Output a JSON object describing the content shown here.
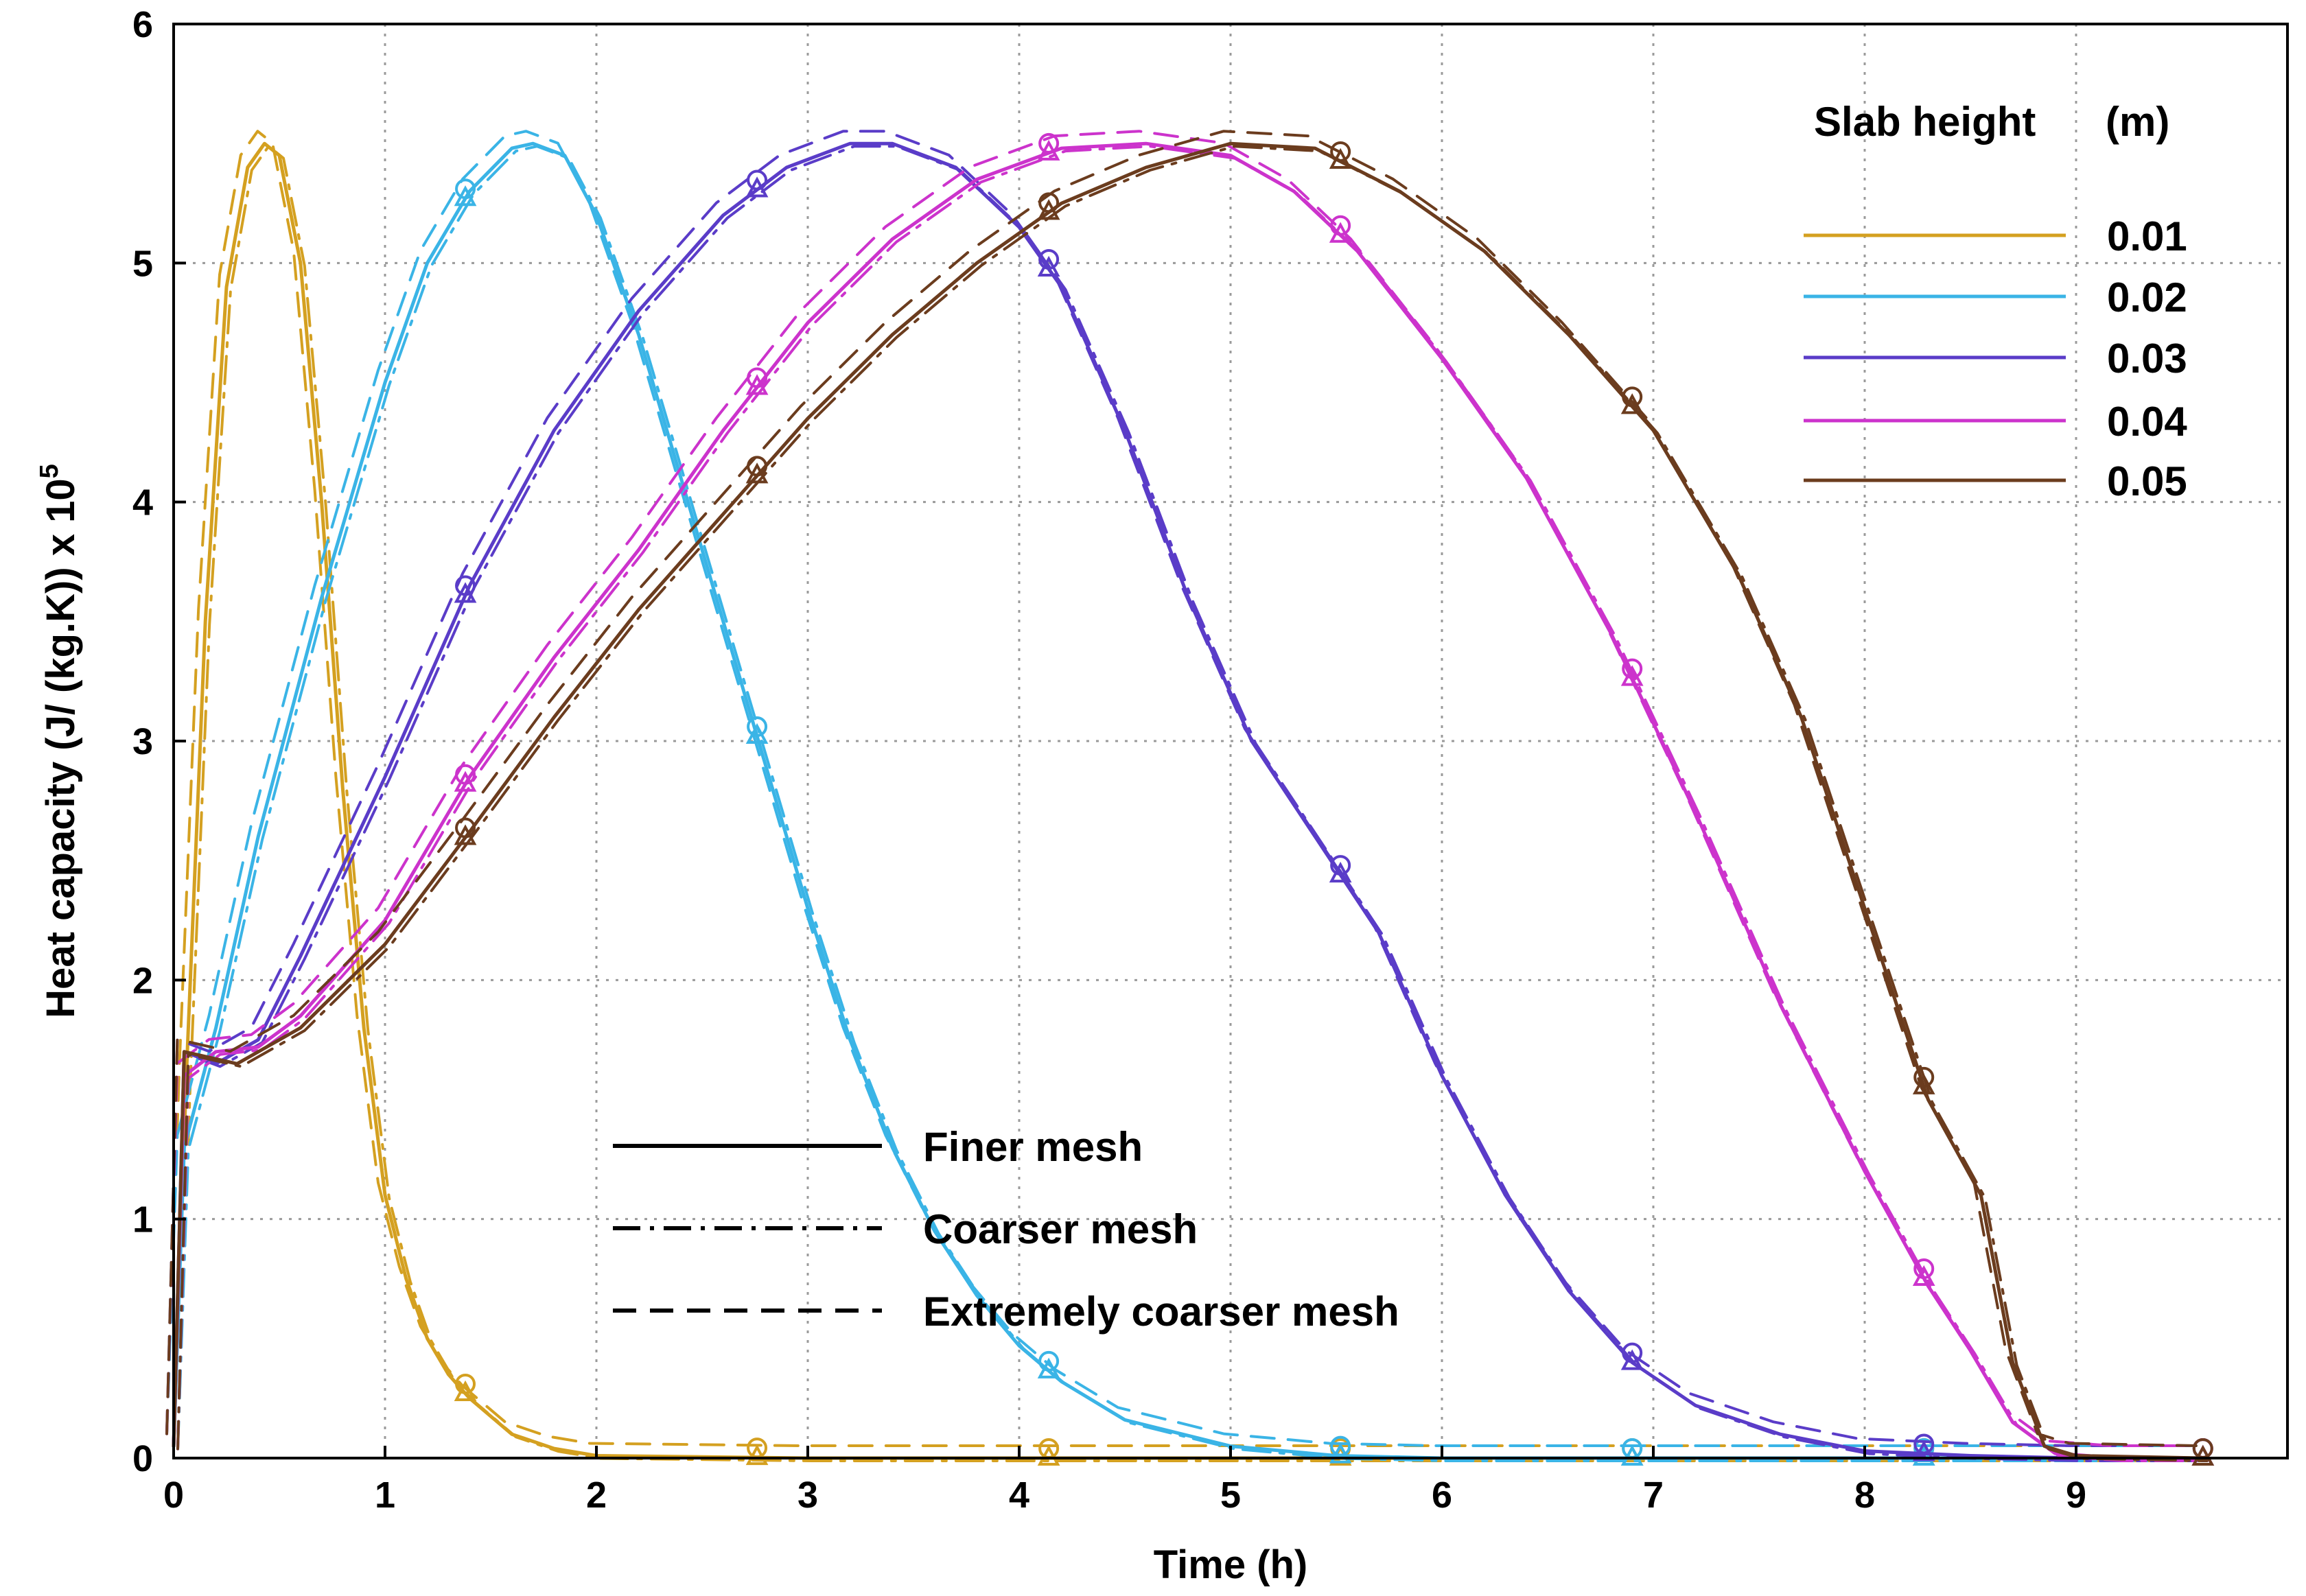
{
  "chart_data": {
    "type": "line",
    "title": "",
    "xlabel": "Time (h)",
    "ylabel": "Heat capacity (J/ (kg.K)) x 10",
    "ylabel_exponent": "5",
    "xlim": [
      0,
      10
    ],
    "ylim": [
      0,
      6
    ],
    "xticks": [
      "0",
      "1",
      "2",
      "3",
      "4",
      "5",
      "6",
      "7",
      "8",
      "9"
    ],
    "yticks": [
      "0",
      "1",
      "2",
      "3",
      "4",
      "5",
      "6"
    ],
    "grid": true,
    "legend_title": "Slab height",
    "legend_unit": "(m)",
    "legend_position": "top-right",
    "series": [
      {
        "name": "0.01",
        "color": "#d4a020",
        "points": [
          [
            0,
            0.05
          ],
          [
            0.06,
            1.6
          ],
          [
            0.15,
            3.5
          ],
          [
            0.25,
            4.9
          ],
          [
            0.35,
            5.4
          ],
          [
            0.43,
            5.5
          ],
          [
            0.5,
            5.45
          ],
          [
            0.6,
            5.0
          ],
          [
            0.7,
            4.0
          ],
          [
            0.8,
            2.8
          ],
          [
            0.9,
            1.8
          ],
          [
            1.0,
            1.1
          ],
          [
            1.1,
            0.75
          ],
          [
            1.2,
            0.5
          ],
          [
            1.3,
            0.35
          ],
          [
            1.4,
            0.25
          ],
          [
            1.6,
            0.1
          ],
          [
            1.8,
            0.04
          ],
          [
            2.0,
            0.01
          ],
          [
            3,
            0
          ],
          [
            4,
            0
          ],
          [
            5,
            0
          ],
          [
            6,
            0
          ],
          [
            7,
            0
          ],
          [
            8,
            0
          ],
          [
            9,
            0
          ],
          [
            9.6,
            0
          ]
        ],
        "markers_x": [
          1.38,
          2.76,
          4.14,
          5.52,
          6.9,
          8.28,
          9.6
        ]
      },
      {
        "name": "0.02",
        "color": "#3ab4e6",
        "points": [
          [
            0,
            0.05
          ],
          [
            0.05,
            1.3
          ],
          [
            0.2,
            1.8
          ],
          [
            0.4,
            2.6
          ],
          [
            0.7,
            3.6
          ],
          [
            1.0,
            4.5
          ],
          [
            1.2,
            5.0
          ],
          [
            1.4,
            5.3
          ],
          [
            1.6,
            5.48
          ],
          [
            1.7,
            5.5
          ],
          [
            1.85,
            5.45
          ],
          [
            2.0,
            5.2
          ],
          [
            2.2,
            4.7
          ],
          [
            2.4,
            4.1
          ],
          [
            2.6,
            3.5
          ],
          [
            2.8,
            2.9
          ],
          [
            3.0,
            2.3
          ],
          [
            3.2,
            1.75
          ],
          [
            3.4,
            1.3
          ],
          [
            3.6,
            0.95
          ],
          [
            3.8,
            0.68
          ],
          [
            4.0,
            0.47
          ],
          [
            4.2,
            0.32
          ],
          [
            4.5,
            0.16
          ],
          [
            5.0,
            0.05
          ],
          [
            5.5,
            0.01
          ],
          [
            6,
            0
          ],
          [
            7,
            0
          ],
          [
            8,
            0
          ],
          [
            9,
            0
          ],
          [
            9.6,
            0
          ]
        ],
        "markers_x": [
          1.38,
          2.76,
          4.14,
          5.52,
          6.9,
          8.28,
          9.6
        ]
      },
      {
        "name": "0.03",
        "color": "#5a3cc8",
        "points": [
          [
            0,
            0.05
          ],
          [
            0.05,
            1.7
          ],
          [
            0.2,
            1.65
          ],
          [
            0.4,
            1.75
          ],
          [
            0.6,
            2.1
          ],
          [
            1.0,
            2.85
          ],
          [
            1.4,
            3.65
          ],
          [
            1.8,
            4.3
          ],
          [
            2.2,
            4.8
          ],
          [
            2.6,
            5.2
          ],
          [
            2.9,
            5.4
          ],
          [
            3.2,
            5.5
          ],
          [
            3.4,
            5.5
          ],
          [
            3.7,
            5.4
          ],
          [
            4.0,
            5.15
          ],
          [
            4.2,
            4.9
          ],
          [
            4.5,
            4.3
          ],
          [
            4.8,
            3.6
          ],
          [
            5.1,
            3.0
          ],
          [
            5.4,
            2.6
          ],
          [
            5.7,
            2.2
          ],
          [
            6.0,
            1.6
          ],
          [
            6.3,
            1.1
          ],
          [
            6.6,
            0.7
          ],
          [
            6.9,
            0.4
          ],
          [
            7.2,
            0.22
          ],
          [
            7.6,
            0.1
          ],
          [
            8.0,
            0.03
          ],
          [
            8.5,
            0.01
          ],
          [
            9,
            0
          ],
          [
            9.6,
            0
          ]
        ],
        "markers_x": [
          1.38,
          2.76,
          4.14,
          5.52,
          6.9,
          8.28,
          9.6
        ]
      },
      {
        "name": "0.04",
        "color": "#cc33cc",
        "points": [
          [
            0,
            0.05
          ],
          [
            0.05,
            1.6
          ],
          [
            0.2,
            1.7
          ],
          [
            0.4,
            1.72
          ],
          [
            0.6,
            1.85
          ],
          [
            1.0,
            2.25
          ],
          [
            1.4,
            2.85
          ],
          [
            1.8,
            3.35
          ],
          [
            2.2,
            3.8
          ],
          [
            2.6,
            4.3
          ],
          [
            3.0,
            4.75
          ],
          [
            3.4,
            5.1
          ],
          [
            3.8,
            5.35
          ],
          [
            4.2,
            5.48
          ],
          [
            4.6,
            5.5
          ],
          [
            5.0,
            5.45
          ],
          [
            5.3,
            5.3
          ],
          [
            5.6,
            5.05
          ],
          [
            6.0,
            4.6
          ],
          [
            6.4,
            4.1
          ],
          [
            6.8,
            3.45
          ],
          [
            7.2,
            2.7
          ],
          [
            7.6,
            1.9
          ],
          [
            8.0,
            1.2
          ],
          [
            8.3,
            0.72
          ],
          [
            8.5,
            0.45
          ],
          [
            8.7,
            0.15
          ],
          [
            8.9,
            0.02
          ],
          [
            9.2,
            0
          ],
          [
            9.6,
            0
          ]
        ],
        "markers_x": [
          1.38,
          2.76,
          4.14,
          5.52,
          6.9,
          8.28,
          9.6
        ]
      },
      {
        "name": "0.05",
        "color": "#6b3c1e",
        "points": [
          [
            0,
            0.05
          ],
          [
            0.05,
            1.7
          ],
          [
            0.3,
            1.65
          ],
          [
            0.6,
            1.8
          ],
          [
            1.0,
            2.15
          ],
          [
            1.4,
            2.62
          ],
          [
            1.8,
            3.1
          ],
          [
            2.2,
            3.55
          ],
          [
            2.6,
            3.95
          ],
          [
            3.0,
            4.35
          ],
          [
            3.4,
            4.7
          ],
          [
            3.8,
            5.0
          ],
          [
            4.2,
            5.25
          ],
          [
            4.6,
            5.4
          ],
          [
            5.0,
            5.5
          ],
          [
            5.4,
            5.48
          ],
          [
            5.8,
            5.3
          ],
          [
            6.2,
            5.05
          ],
          [
            6.6,
            4.7
          ],
          [
            7.0,
            4.3
          ],
          [
            7.4,
            3.7
          ],
          [
            7.7,
            3.1
          ],
          [
            8.0,
            2.3
          ],
          [
            8.3,
            1.5
          ],
          [
            8.55,
            1.1
          ],
          [
            8.7,
            0.4
          ],
          [
            8.85,
            0.05
          ],
          [
            9.0,
            0.01
          ],
          [
            9.6,
            0
          ]
        ],
        "markers_x": [
          1.38,
          2.76,
          4.14,
          5.52,
          6.9,
          8.28,
          9.6
        ]
      }
    ],
    "mesh_legend": [
      {
        "label": "Finer mesh",
        "style": "solid"
      },
      {
        "label": "Coarser mesh",
        "style": "dashdot"
      },
      {
        "label": "Extremely coarser mesh",
        "style": "dashed"
      }
    ]
  }
}
